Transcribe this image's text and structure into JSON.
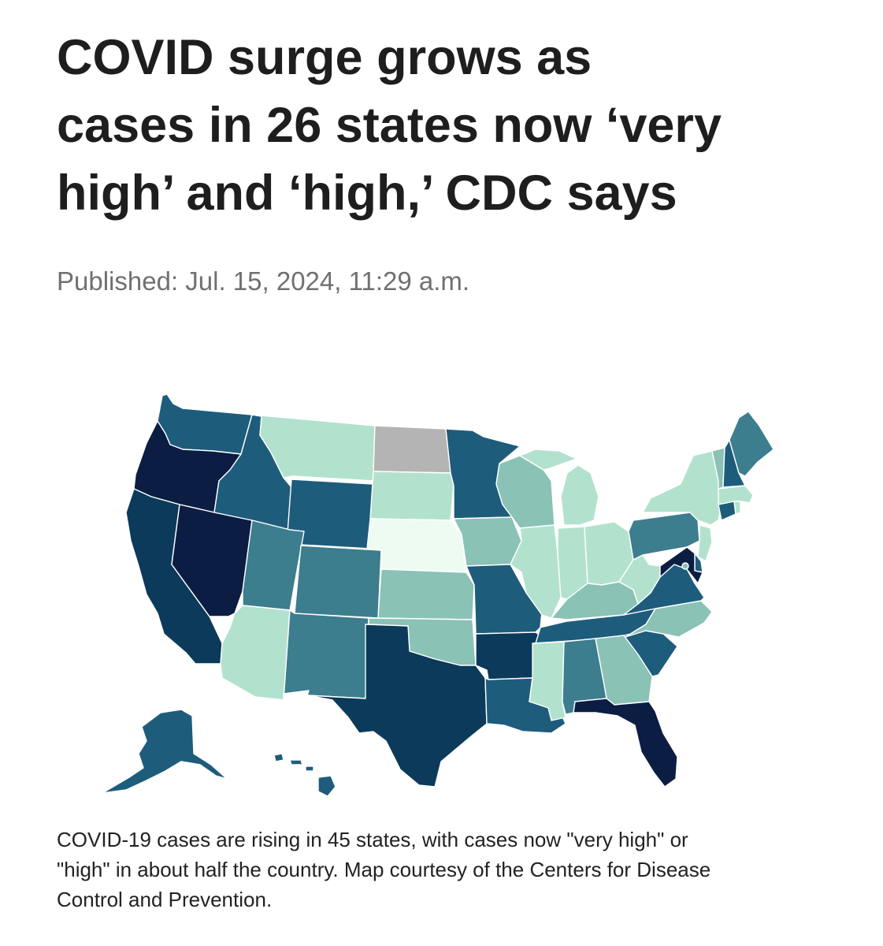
{
  "article": {
    "headline_lines": [
      "COVID surge grows as",
      "cases in 26 states now ‘very",
      "high’ and ‘high,’ CDC says"
    ],
    "published": "Published: Jul. 15, 2024, 11:29 a.m.",
    "caption_lines": [
      "COVID-19 cases are rising in 45 states, with cases now \"very high\" or",
      "\"high\" in about half the country. Map courtesy of the Centers for Disease",
      "Control and Prevention."
    ]
  },
  "map": {
    "colors": {
      "level_1": "#eefbf3",
      "level_2": "#b2e2cd",
      "level_3": "#8ac2b6",
      "level_4": "#3c7d8e",
      "level_5": "#1e5c7c",
      "level_6": "#0b3a5a",
      "level_7": "#0b1d42",
      "no_data": "#b4b4b4"
    },
    "states": [
      {
        "id": "WA",
        "level": "level_5"
      },
      {
        "id": "OR",
        "level": "level_7"
      },
      {
        "id": "CA",
        "level": "level_6"
      },
      {
        "id": "NV",
        "level": "level_7"
      },
      {
        "id": "ID",
        "level": "level_5"
      },
      {
        "id": "MT",
        "level": "level_2"
      },
      {
        "id": "WY",
        "level": "level_5"
      },
      {
        "id": "UT",
        "level": "level_4"
      },
      {
        "id": "AZ",
        "level": "level_2"
      },
      {
        "id": "CO",
        "level": "level_4"
      },
      {
        "id": "NM",
        "level": "level_4"
      },
      {
        "id": "ND",
        "level": "no_data"
      },
      {
        "id": "SD",
        "level": "level_2"
      },
      {
        "id": "NE",
        "level": "level_1"
      },
      {
        "id": "KS",
        "level": "level_3"
      },
      {
        "id": "OK",
        "level": "level_3"
      },
      {
        "id": "TX",
        "level": "level_6"
      },
      {
        "id": "MN",
        "level": "level_5"
      },
      {
        "id": "IA",
        "level": "level_3"
      },
      {
        "id": "MO",
        "level": "level_5"
      },
      {
        "id": "AR",
        "level": "level_6"
      },
      {
        "id": "LA",
        "level": "level_5"
      },
      {
        "id": "WI",
        "level": "level_3"
      },
      {
        "id": "IL",
        "level": "level_2"
      },
      {
        "id": "MI",
        "level": "level_2"
      },
      {
        "id": "IN",
        "level": "level_2"
      },
      {
        "id": "OH",
        "level": "level_2"
      },
      {
        "id": "KY",
        "level": "level_3"
      },
      {
        "id": "TN",
        "level": "level_5"
      },
      {
        "id": "MS",
        "level": "level_2"
      },
      {
        "id": "AL",
        "level": "level_4"
      },
      {
        "id": "GA",
        "level": "level_3"
      },
      {
        "id": "FL",
        "level": "level_7"
      },
      {
        "id": "SC",
        "level": "level_5"
      },
      {
        "id": "NC",
        "level": "level_3"
      },
      {
        "id": "VA",
        "level": "level_5"
      },
      {
        "id": "WV",
        "level": "level_2"
      },
      {
        "id": "PA",
        "level": "level_4"
      },
      {
        "id": "NY",
        "level": "level_2"
      },
      {
        "id": "NJ",
        "level": "level_2"
      },
      {
        "id": "DE",
        "level": "level_5"
      },
      {
        "id": "MD",
        "level": "level_7"
      },
      {
        "id": "DC",
        "level": "level_3"
      },
      {
        "id": "CT",
        "level": "level_5"
      },
      {
        "id": "RI",
        "level": "level_2"
      },
      {
        "id": "MA",
        "level": "level_2"
      },
      {
        "id": "VT",
        "level": "level_3"
      },
      {
        "id": "NH",
        "level": "level_5"
      },
      {
        "id": "ME",
        "level": "level_4"
      },
      {
        "id": "AK",
        "level": "level_5"
      },
      {
        "id": "HI",
        "level": "level_5"
      }
    ]
  }
}
